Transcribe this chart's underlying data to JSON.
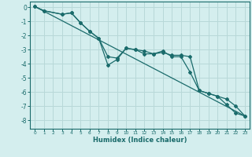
{
  "xlabel": "Humidex (Indice chaleur)",
  "bg_color": "#d4eeee",
  "grid_color": "#b8d8d8",
  "line_color": "#1a6b6b",
  "xlim": [
    -0.5,
    23.5
  ],
  "ylim": [
    -8.6,
    0.4
  ],
  "xticks": [
    0,
    1,
    2,
    3,
    4,
    5,
    6,
    7,
    8,
    9,
    10,
    11,
    12,
    13,
    14,
    15,
    16,
    17,
    18,
    19,
    20,
    21,
    22,
    23
  ],
  "yticks": [
    0,
    -1,
    -2,
    -3,
    -4,
    -5,
    -6,
    -7,
    -8
  ],
  "line1_x": [
    0,
    1,
    3,
    4,
    5,
    6,
    7,
    8,
    9,
    10,
    11,
    12,
    13,
    14,
    15,
    16,
    17,
    18,
    19,
    20,
    21,
    22,
    23
  ],
  "line1_y": [
    0.05,
    -0.25,
    -0.5,
    -0.4,
    -1.1,
    -1.7,
    -2.2,
    -4.1,
    -3.7,
    -2.9,
    -3.0,
    -3.1,
    -3.3,
    -3.1,
    -3.5,
    -3.5,
    -4.6,
    -5.9,
    -6.1,
    -6.3,
    -6.9,
    -7.5,
    -7.7
  ],
  "line2_x": [
    0,
    1,
    3,
    4,
    5,
    6,
    7,
    8,
    9,
    10,
    11,
    12,
    13,
    14,
    15,
    16,
    17,
    18,
    19,
    20,
    21,
    22,
    23
  ],
  "line2_y": [
    0.05,
    -0.25,
    -0.5,
    -0.4,
    -1.1,
    -1.7,
    -2.2,
    -3.5,
    -3.6,
    -2.9,
    -3.0,
    -3.3,
    -3.3,
    -3.2,
    -3.4,
    -3.4,
    -3.5,
    -5.9,
    -6.1,
    -6.3,
    -6.5,
    -7.0,
    -7.7
  ],
  "line3_x": [
    0,
    23
  ],
  "line3_y": [
    0.05,
    -7.7
  ],
  "marker_size": 2.0,
  "linewidth": 0.9
}
